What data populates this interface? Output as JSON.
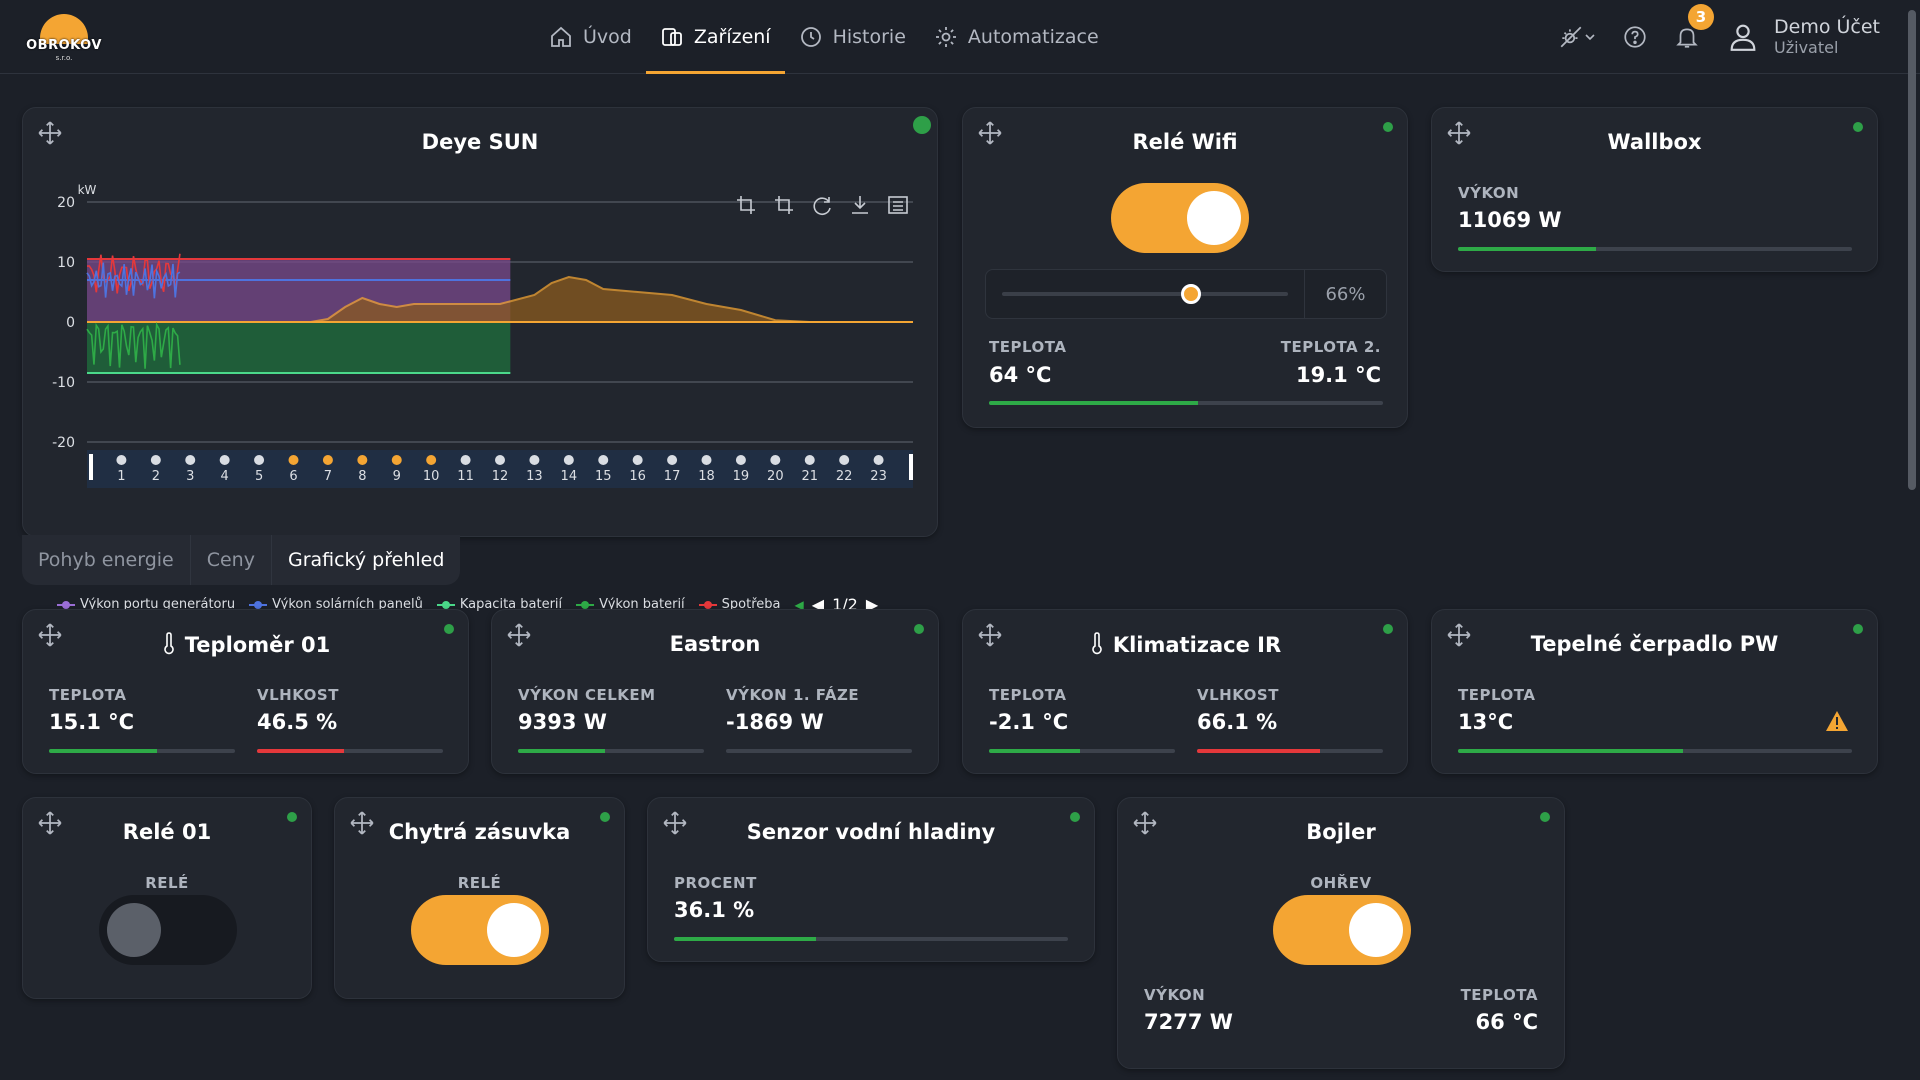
{
  "header": {
    "logo_text": "OBROKOV",
    "logo_sub": "s.r.o.",
    "nav": [
      {
        "label": "Úvod",
        "icon": "home-icon"
      },
      {
        "label": "Zařízení",
        "icon": "devices-icon",
        "active": true
      },
      {
        "label": "Historie",
        "icon": "history-icon"
      },
      {
        "label": "Automatizace",
        "icon": "gear-icon"
      }
    ],
    "notifications_count": "3",
    "user_name": "Demo Účet",
    "user_role": "Uživatel"
  },
  "deye": {
    "title": "Deye SUN",
    "tabs": [
      "Pohyb energie",
      "Ceny",
      "Grafický přehled"
    ],
    "active_tab": 2,
    "pager": "1/2"
  },
  "chart_data": {
    "type": "area",
    "ylabel": "kW",
    "ylim": [
      -20,
      20
    ],
    "yticks": [
      20,
      10,
      0,
      -10,
      -20
    ],
    "x_hours": [
      "",
      "1",
      "2",
      "3",
      "4",
      "5",
      "6",
      "7",
      "8",
      "9",
      "10",
      "11",
      "12",
      "13",
      "14",
      "15",
      "16",
      "17",
      "18",
      "19",
      "20",
      "21",
      "22",
      "23"
    ],
    "legend": [
      {
        "name": "Výkon portu generátoru",
        "color": "#9b6fd6"
      },
      {
        "name": "Výkon solárních panelů",
        "color": "#4e73df"
      },
      {
        "name": "Kapacita baterií",
        "color": "#4bd88a"
      },
      {
        "name": "Výkon baterií",
        "color": "#2eaa47"
      },
      {
        "name": "Spotřeba",
        "color": "#e5383b"
      }
    ],
    "series": [
      {
        "key": "solar",
        "x": [
          6.5,
          7,
          7.5,
          8,
          8.5,
          9,
          9.5,
          10,
          11,
          12,
          13,
          13.5,
          14,
          14.5,
          15,
          16,
          17,
          18,
          19,
          20,
          21,
          22,
          23.9
        ],
        "values": [
          0,
          0.5,
          2.5,
          4,
          3,
          2.5,
          3,
          3,
          3,
          3,
          4.5,
          6.5,
          7.5,
          7,
          5.5,
          5,
          4.5,
          3,
          2,
          0.3,
          0,
          0,
          0
        ]
      },
      {
        "key": "consumption_fill",
        "x": [
          0,
          12.3
        ],
        "values": [
          10.5,
          10.5
        ]
      },
      {
        "key": "battery_fill",
        "x": [
          0,
          12.3
        ],
        "values": [
          -8.5,
          -8.5
        ]
      }
    ]
  },
  "rele_wifi": {
    "title": "Relé Wifi",
    "slider_value": "66%",
    "slider_fraction": 0.66,
    "temp_label": "TEPLOTA",
    "temp_value": "64 °C",
    "temp2_label": "TEPLOTA 2.",
    "temp2_value": "19.1 °C",
    "bar": 0.53
  },
  "wallbox": {
    "title": "Wallbox",
    "label": "VÝKON",
    "value": "11069 W",
    "bar": 0.35
  },
  "teplomer": {
    "title": "Teploměr 01",
    "l1": "TEPLOTA",
    "v1": "15.1 °C",
    "b1": 0.58,
    "l2": "VLHKOST",
    "v2": "46.5 %",
    "b2": 0.47
  },
  "eastron": {
    "title": "Eastron",
    "l1": "VÝKON CELKEM",
    "v1": "9393 W",
    "b1": 0.47,
    "l2": "VÝKON 1. FÁZE",
    "v2": "-1869 W",
    "b2": 0
  },
  "klimatizace": {
    "title": "Klimatizace IR",
    "l1": "TEPLOTA",
    "v1": "-2.1 °C",
    "b1": 0.49,
    "l2": "VLHKOST",
    "v2": "66.1 %",
    "b2": 0.66
  },
  "cerpadlo": {
    "title": "Tepelné čerpadlo PW",
    "l1": "TEPLOTA",
    "v1": "13°C",
    "b1": 0.57
  },
  "rele01": {
    "title": "Relé 01",
    "label": "RELÉ"
  },
  "zasuvka": {
    "title": "Chytrá zásuvka",
    "label": "RELÉ"
  },
  "senzor": {
    "title": "Senzor vodní hladiny",
    "label": "PROCENT",
    "value": "36.1 %",
    "bar": 0.36
  },
  "bojler": {
    "title": "Bojler",
    "label": "OHŘEV",
    "l1": "VÝKON",
    "v1": "7277 W",
    "l2": "TEPLOTA",
    "v2": "66 °C"
  },
  "colors": {
    "accent": "#f4a533",
    "ok": "#2eaa47",
    "alert": "#e5383b",
    "bg": "#1c2028",
    "card": "#22262e"
  }
}
